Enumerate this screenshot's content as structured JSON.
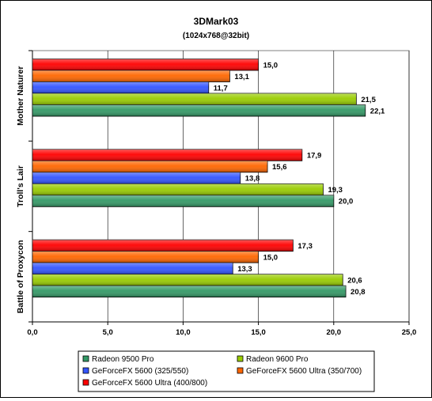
{
  "chart_data": {
    "type": "bar",
    "orientation": "horizontal",
    "title": "3DMark03",
    "subtitle": "(1024x768@32bit)",
    "xlim": [
      0,
      25
    ],
    "x_ticks": [
      "0,0",
      "5,0",
      "10,0",
      "15,0",
      "20,0",
      "25,0"
    ],
    "x_tick_values": [
      0,
      5,
      10,
      15,
      20,
      25
    ],
    "grid": true,
    "legend_position": "bottom",
    "categories": [
      "Mother Naturer",
      "Troll's Lair",
      "Battle of Proxycon"
    ],
    "series": [
      {
        "name": "GeForceFX 5600 Ultra (400/800)",
        "color": "#ff0000",
        "values": [
          15.0,
          17.9,
          17.3
        ],
        "labels": [
          "15,0",
          "17,9",
          "17,3"
        ]
      },
      {
        "name": "GeForceFX 5600 Ultra (350/700)",
        "color": "#ff6600",
        "values": [
          13.1,
          15.6,
          15.0
        ],
        "labels": [
          "13,1",
          "15,6",
          "15,0"
        ]
      },
      {
        "name": "GeForceFX 5600 (325/550)",
        "color": "#3355ff",
        "values": [
          11.7,
          13.8,
          13.3
        ],
        "labels": [
          "11,7",
          "13,8",
          "13,3"
        ]
      },
      {
        "name": "Radeon 9600 Pro",
        "color": "#99cc00",
        "values": [
          21.5,
          19.3,
          20.6
        ],
        "labels": [
          "21,5",
          "19,3",
          "20,6"
        ]
      },
      {
        "name": "Radeon 9500 Pro",
        "color": "#339966",
        "values": [
          22.1,
          20.0,
          20.8
        ],
        "labels": [
          "22,1",
          "20,0",
          "20,8"
        ]
      }
    ],
    "legend": [
      {
        "name": "Radeon 9500 Pro",
        "color": "#339966"
      },
      {
        "name": "Radeon 9600 Pro",
        "color": "#99cc00"
      },
      {
        "name": "GeForceFX 5600 (325/550)",
        "color": "#3355ff"
      },
      {
        "name": "GeForceFX 5600 Ultra (350/700)",
        "color": "#ff6600"
      },
      {
        "name": "GeForceFX 5600 Ultra (400/800)",
        "color": "#ff0000"
      }
    ]
  }
}
